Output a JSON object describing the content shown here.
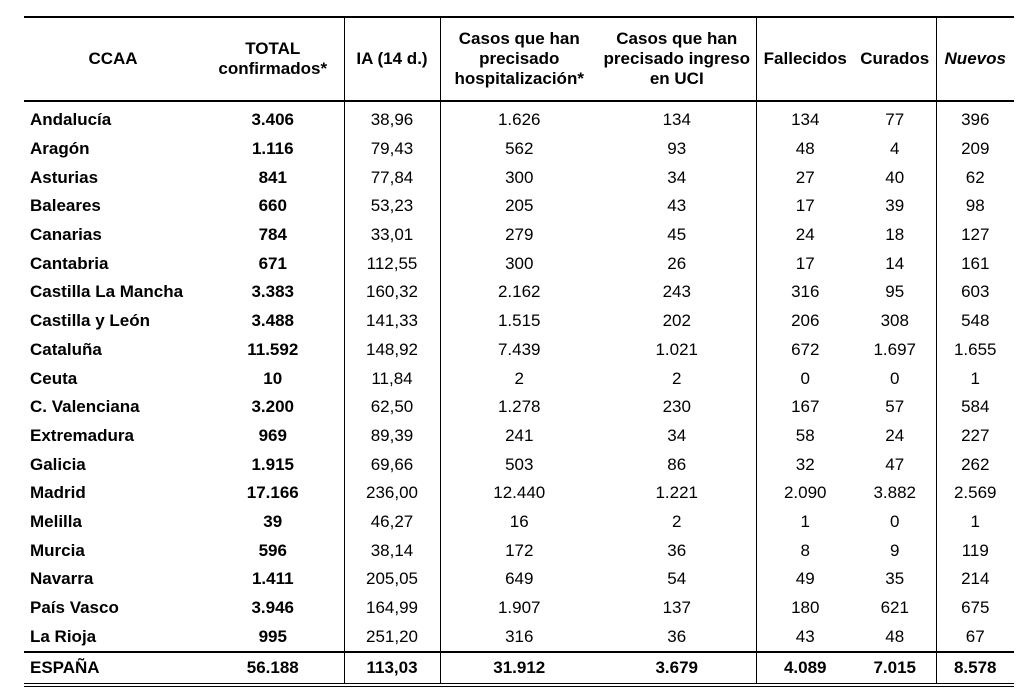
{
  "headers": {
    "ccaa": "CCAA",
    "total": "TOTAL confirmados*",
    "ia": "IA (14 d.)",
    "hosp": "Casos que han precisado hospitalización*",
    "uci": "Casos que han precisado ingreso en UCI",
    "fallecidos": "Fallecidos",
    "curados": "Curados",
    "nuevos": "Nuevos"
  },
  "rows": [
    {
      "ccaa": "Andalucía",
      "total": "3.406",
      "ia": "38,96",
      "hosp": "1.626",
      "uci": "134",
      "fallecidos": "134",
      "curados": "77",
      "nuevos": "396"
    },
    {
      "ccaa": "Aragón",
      "total": "1.116",
      "ia": "79,43",
      "hosp": "562",
      "uci": "93",
      "fallecidos": "48",
      "curados": "4",
      "nuevos": "209"
    },
    {
      "ccaa": "Asturias",
      "total": "841",
      "ia": "77,84",
      "hosp": "300",
      "uci": "34",
      "fallecidos": "27",
      "curados": "40",
      "nuevos": "62"
    },
    {
      "ccaa": "Baleares",
      "total": "660",
      "ia": "53,23",
      "hosp": "205",
      "uci": "43",
      "fallecidos": "17",
      "curados": "39",
      "nuevos": "98"
    },
    {
      "ccaa": "Canarias",
      "total": "784",
      "ia": "33,01",
      "hosp": "279",
      "uci": "45",
      "fallecidos": "24",
      "curados": "18",
      "nuevos": "127"
    },
    {
      "ccaa": "Cantabria",
      "total": "671",
      "ia": "112,55",
      "hosp": "300",
      "uci": "26",
      "fallecidos": "17",
      "curados": "14",
      "nuevos": "161"
    },
    {
      "ccaa": "Castilla La Mancha",
      "total": "3.383",
      "ia": "160,32",
      "hosp": "2.162",
      "uci": "243",
      "fallecidos": "316",
      "curados": "95",
      "nuevos": "603"
    },
    {
      "ccaa": "Castilla y León",
      "total": "3.488",
      "ia": "141,33",
      "hosp": "1.515",
      "uci": "202",
      "fallecidos": "206",
      "curados": "308",
      "nuevos": "548"
    },
    {
      "ccaa": "Cataluña",
      "total": "11.592",
      "ia": "148,92",
      "hosp": "7.439",
      "uci": "1.021",
      "fallecidos": "672",
      "curados": "1.697",
      "nuevos": "1.655"
    },
    {
      "ccaa": "Ceuta",
      "total": "10",
      "ia": "11,84",
      "hosp": "2",
      "uci": "2",
      "fallecidos": "0",
      "curados": "0",
      "nuevos": "1"
    },
    {
      "ccaa": "C. Valenciana",
      "total": "3.200",
      "ia": "62,50",
      "hosp": "1.278",
      "uci": "230",
      "fallecidos": "167",
      "curados": "57",
      "nuevos": "584"
    },
    {
      "ccaa": "Extremadura",
      "total": "969",
      "ia": "89,39",
      "hosp": "241",
      "uci": "34",
      "fallecidos": "58",
      "curados": "24",
      "nuevos": "227"
    },
    {
      "ccaa": "Galicia",
      "total": "1.915",
      "ia": "69,66",
      "hosp": "503",
      "uci": "86",
      "fallecidos": "32",
      "curados": "47",
      "nuevos": "262"
    },
    {
      "ccaa": "Madrid",
      "total": "17.166",
      "ia": "236,00",
      "hosp": "12.440",
      "uci": "1.221",
      "fallecidos": "2.090",
      "curados": "3.882",
      "nuevos": "2.569"
    },
    {
      "ccaa": "Melilla",
      "total": "39",
      "ia": "46,27",
      "hosp": "16",
      "uci": "2",
      "fallecidos": "1",
      "curados": "0",
      "nuevos": "1"
    },
    {
      "ccaa": "Murcia",
      "total": "596",
      "ia": "38,14",
      "hosp": "172",
      "uci": "36",
      "fallecidos": "8",
      "curados": "9",
      "nuevos": "119"
    },
    {
      "ccaa": "Navarra",
      "total": "1.411",
      "ia": "205,05",
      "hosp": "649",
      "uci": "54",
      "fallecidos": "49",
      "curados": "35",
      "nuevos": "214"
    },
    {
      "ccaa": "País Vasco",
      "total": "3.946",
      "ia": "164,99",
      "hosp": "1.907",
      "uci": "137",
      "fallecidos": "180",
      "curados": "621",
      "nuevos": "675"
    },
    {
      "ccaa": "La Rioja",
      "total": "995",
      "ia": "251,20",
      "hosp": "316",
      "uci": "36",
      "fallecidos": "43",
      "curados": "48",
      "nuevos": "67"
    }
  ],
  "total_row": {
    "ccaa": "ESPAÑA",
    "total": "56.188",
    "ia": "113,03",
    "hosp": "31.912",
    "uci": "3.679",
    "fallecidos": "4.089",
    "curados": "7.015",
    "nuevos": "8.578"
  }
}
